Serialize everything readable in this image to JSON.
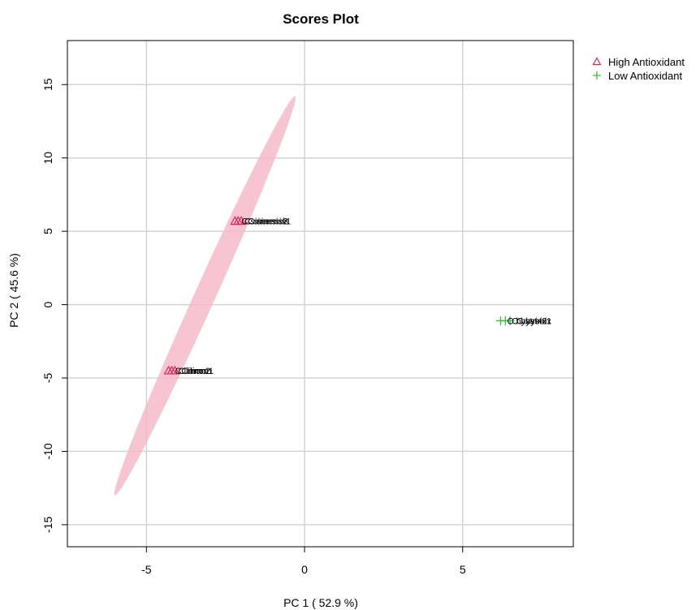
{
  "chart_data": {
    "type": "scatter",
    "title": "Scores Plot",
    "xlabel": "PC 1 ( 52.9 %)",
    "ylabel": "PC 2 ( 45.6 %)",
    "xlim": [
      -7.5,
      8.5
    ],
    "ylim": [
      -16.5,
      18
    ],
    "xticks": [
      -5,
      0,
      5
    ],
    "yticks": [
      -15,
      -10,
      -5,
      0,
      5,
      10,
      15
    ],
    "xtick_labels": [
      "-5",
      "0",
      "5"
    ],
    "ytick_labels": [
      "-15",
      "-10",
      "-5",
      "0",
      "5",
      "10",
      "15"
    ],
    "grid": true,
    "legend_position": "top-right, outside plot",
    "series": [
      {
        "name": "High Antioxidant",
        "marker": "triangle",
        "color": "#df2360",
        "ellipse_color": "#f4b6c6",
        "ellipse": {
          "center": [
            -3.15,
            0.6
          ],
          "end_upper": [
            -0.3,
            14.2
          ],
          "end_lower": [
            -6.0,
            -13.0
          ],
          "half_width": 0.33
        },
        "points": [
          {
            "x": -2.2,
            "y": 5.7,
            "label": "C.sinensis2"
          },
          {
            "x": -2.1,
            "y": 5.7,
            "label": "C.sinensis1"
          },
          {
            "x": -2.0,
            "y": 5.7,
            "label": "C.sinensis"
          },
          {
            "x": -4.3,
            "y": -4.5,
            "label": "C.limon2"
          },
          {
            "x": -4.2,
            "y": -4.5,
            "label": "C.limon1"
          },
          {
            "x": -4.1,
            "y": -4.5,
            "label": "C.limon"
          }
        ]
      },
      {
        "name": "Low Antioxidant",
        "marker": "plus",
        "color": "#3dbb3d",
        "points": [
          {
            "x": 6.2,
            "y": -1.1,
            "label": "C.hystrix2"
          },
          {
            "x": 6.35,
            "y": -1.1,
            "label": "C.hystrix1"
          },
          {
            "x": 6.5,
            "y": -1.1,
            "label": "C.hystrix"
          }
        ]
      }
    ]
  }
}
